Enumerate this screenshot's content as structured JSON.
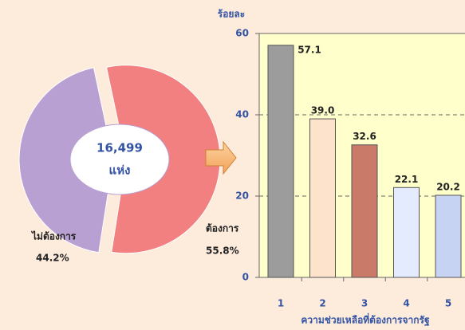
{
  "chart_data": [
    {
      "type": "pie",
      "categories": [
        "ต้องการ",
        "ไม่ต้องการ"
      ],
      "values": [
        55.8,
        44.2
      ],
      "value_labels": [
        "55.8%",
        "44.2%"
      ],
      "colors": [
        "#f28080",
        "#b9a0d2"
      ],
      "center_text": "16,499",
      "center_subtext": "แห่ง"
    },
    {
      "type": "bar",
      "y_label": "ร้อยละ",
      "x_label": "ความช่วยเหลือที่ต้องการจากรัฐ",
      "categories": [
        "1",
        "2",
        "3",
        "4",
        "5"
      ],
      "values": [
        57.1,
        39,
        32.6,
        22.1,
        20.2
      ],
      "value_labels": [
        "57.1",
        "39.0",
        "32.6",
        "22.1",
        "20.2"
      ],
      "colors": [
        "#9c9c9c",
        "#fde3cc",
        "#c97a68",
        "#e4ebff",
        "#c6d3f2"
      ],
      "ylim": [
        0,
        60
      ],
      "yticks": [
        0,
        20,
        40,
        60
      ],
      "grid": true
    }
  ]
}
